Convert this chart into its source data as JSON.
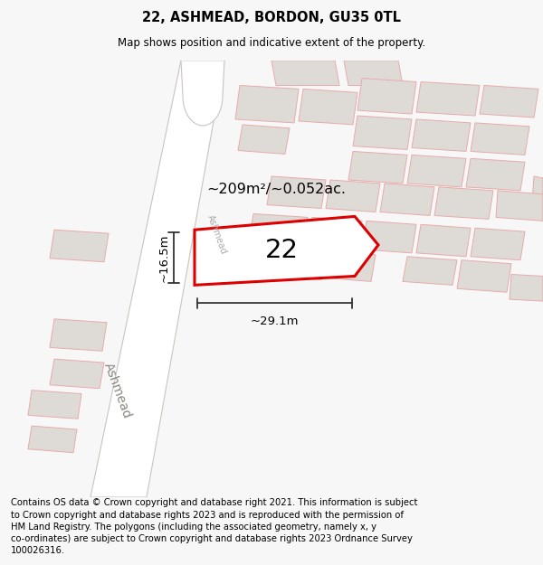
{
  "title": "22, ASHMEAD, BORDON, GU35 0TL",
  "subtitle": "Map shows position and indicative extent of the property.",
  "footer": "Contains OS data © Crown copyright and database right 2021. This information is subject\nto Crown copyright and database rights 2023 and is reproduced with the permission of\nHM Land Registry. The polygons (including the associated geometry, namely x, y\nco-ordinates) are subject to Crown copyright and database rights 2023 Ordnance Survey\n100026316.",
  "area_label": "~209m²/~0.052ac.",
  "width_label": "~29.1m",
  "height_label": "~16.5m",
  "number_label": "22",
  "bg_color": "#f7f7f7",
  "map_bg": "#f8f7f5",
  "plot_color": "#dd0000",
  "building_fill": "#dedbd6",
  "building_edge": "#e8aaaa",
  "road_fill": "#ffffff",
  "road_edge": "#c8c5c0",
  "street_label_lower": "Ashmead",
  "street_label_upper": "Ashmead",
  "title_fontsize": 10.5,
  "subtitle_fontsize": 8.5,
  "footer_fontsize": 7.2
}
